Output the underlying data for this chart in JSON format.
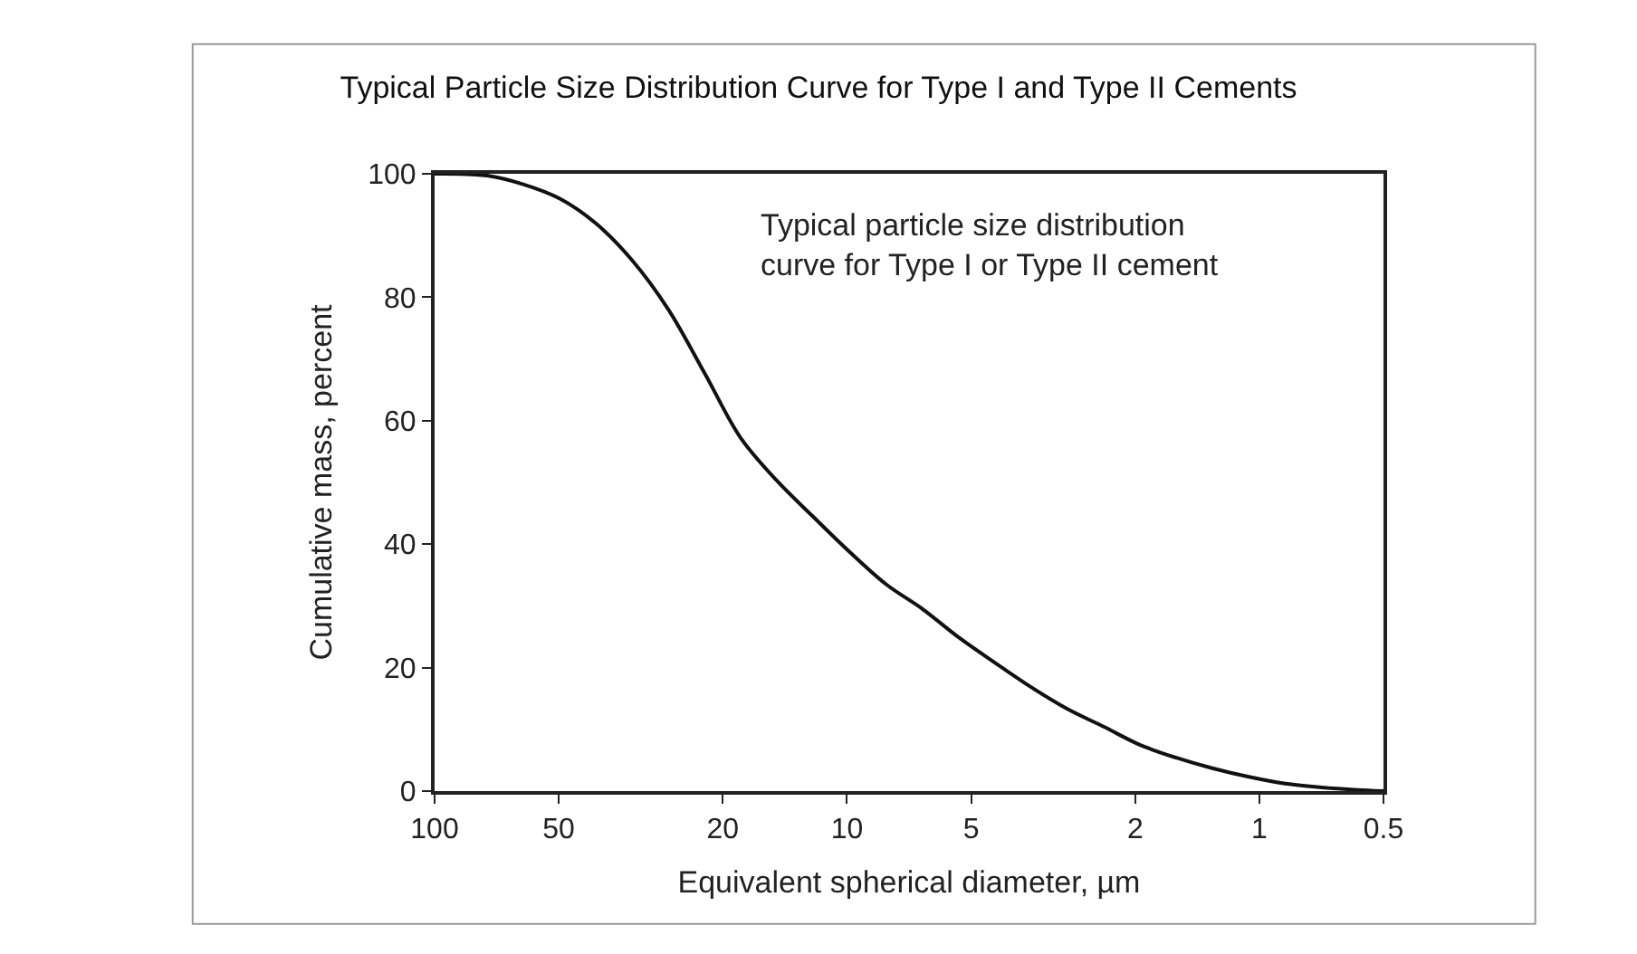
{
  "chart_data": {
    "type": "line",
    "title": "Typical Particle Size Distribution Curve for Type I and Type II Cements",
    "xlabel": "Equivalent spherical diameter, µm",
    "ylabel": "Cumulative mass, percent",
    "log": "x",
    "xlim": [
      100,
      0.5
    ],
    "xticks": [
      100,
      50,
      20,
      10,
      5,
      2,
      1,
      0.5
    ],
    "ylim": [
      0,
      100
    ],
    "yticks": [
      0,
      20,
      40,
      60,
      80,
      100
    ],
    "marker": "none",
    "line_style": "solid",
    "annotations": [
      "Typical particle size distribution\ncurve for Type I or Type II cement"
    ],
    "x": [
      100,
      74.6,
      61,
      49.8,
      40.7,
      33.2,
      27.1,
      22.1,
      18.1,
      14.8,
      12.1,
      9.84,
      8.04,
      6.56,
      5.36,
      4.38,
      3.57,
      2.92,
      2.38,
      1.95,
      1.59,
      1.3,
      1.06,
      0.865,
      0.706,
      0.577,
      0.5
    ],
    "series": [
      {
        "color": "#111111",
        "values": [
          100,
          99.7,
          98.3,
          96,
          92,
          86,
          78,
          67.6,
          57.2,
          50.3,
          44.5,
          38.7,
          33.5,
          29.5,
          24.9,
          20.8,
          16.8,
          13.3,
          10.4,
          7.5,
          5.4,
          3.7,
          2.3,
          1.2,
          0.6,
          0.2,
          0
        ]
      }
    ]
  }
}
